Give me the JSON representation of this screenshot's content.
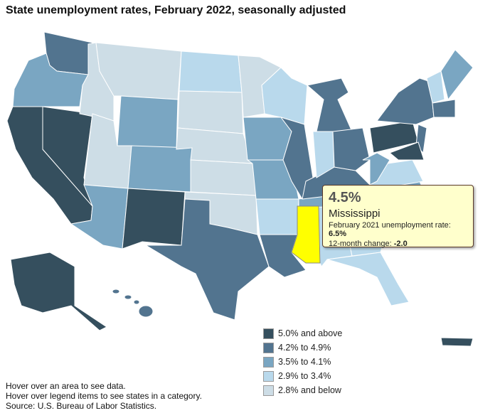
{
  "title": "State unemployment rates, February 2022, seasonally adjusted",
  "legend": [
    {
      "label": "5.0% and above",
      "color": "#354f5e"
    },
    {
      "label": "4.2% to 4.9%",
      "color": "#52748f"
    },
    {
      "label": "3.5% to 4.1%",
      "color": "#7aa6c2"
    },
    {
      "label": "2.9% to 3.4%",
      "color": "#b9d9ec"
    },
    {
      "label": "2.8% and below",
      "color": "#cddde6"
    }
  ],
  "highlight_color": "#ffff00",
  "states": {
    "WA": 1,
    "OR": 2,
    "CA": 0,
    "NV": 0,
    "ID": 4,
    "MT": 4,
    "WY": 2,
    "UT": 4,
    "CO": 2,
    "AZ": 2,
    "NM": 0,
    "ND": 3,
    "SD": 4,
    "NE": 4,
    "KS": 4,
    "OK": 4,
    "TX": 1,
    "MN": 4,
    "IA": 2,
    "MO": 2,
    "AR": 3,
    "LA": 1,
    "WI": 3,
    "IL": 1,
    "MS": 1,
    "AL": 3,
    "TN": 2,
    "KY": 1,
    "IN": 3,
    "MI": 1,
    "OH": 1,
    "GA": 3,
    "FL": 3,
    "SC": 2,
    "NC": 2,
    "VA": 3,
    "WV": 2,
    "PA": 0,
    "NY": 1,
    "NJ": 1,
    "MD": 0,
    "VTNH": 3,
    "ME": 2,
    "MA": 1,
    "AK": 0,
    "HI": 1,
    "PR": 0
  },
  "highlighted_state": "MS",
  "tooltip": {
    "rate": "4.5%",
    "state": "Mississippi",
    "prev_label": "February 2021 unemployment rate: ",
    "prev_value": "6.5%",
    "change_label": "12-month change: ",
    "change_value": "-2.0"
  },
  "notes": [
    "Hover over an area to see data.",
    "Hover over legend items to see states in a category.",
    "Source: U.S. Bureau of Labor Statistics."
  ]
}
